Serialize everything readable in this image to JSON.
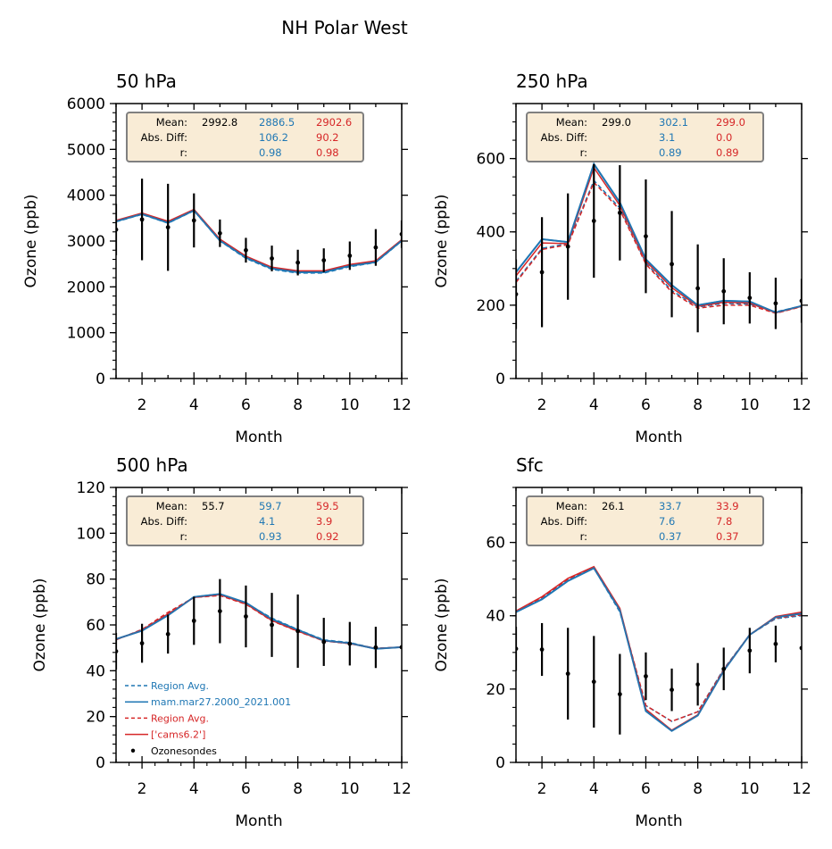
{
  "chart_data": {
    "type": "line",
    "title": "NH Polar West",
    "colors": {
      "observations": "#000000",
      "model1": "#1f77b4",
      "model2": "#d62728",
      "stats_box_bg": "#f9ecd6",
      "stats_box_border": "#808080"
    },
    "legend": {
      "placement": "lower-left of 500 hPa panel",
      "entries": [
        {
          "label": "Region Avg.",
          "color": "#1f77b4",
          "style": "dashed"
        },
        {
          "label": "mam.mar27.2000_2021.001",
          "color": "#1f77b4",
          "style": "solid"
        },
        {
          "label": "Region Avg.",
          "color": "#d62728",
          "style": "dashed"
        },
        {
          "label": "['cams6.2']",
          "color": "#d62728",
          "style": "solid"
        },
        {
          "label": "Ozonesondes",
          "color": "#000000",
          "style": "marker"
        }
      ]
    },
    "x": [
      1,
      2,
      3,
      4,
      5,
      6,
      7,
      8,
      9,
      10,
      11,
      12
    ],
    "panels": [
      {
        "title": "50 hPa",
        "xlabel": "Month",
        "ylabel": "Ozone (ppb)",
        "xlim": [
          1,
          12
        ],
        "ylim": [
          0,
          6000
        ],
        "xticks": [
          "2",
          "4",
          "6",
          "8",
          "10",
          "12"
        ],
        "yticks": [
          "0",
          "1000",
          "2000",
          "3000",
          "4000",
          "5000",
          "6000"
        ],
        "ytick_values": [
          0,
          1000,
          2000,
          3000,
          4000,
          5000,
          6000
        ],
        "minor_y_step": 200,
        "stats": {
          "labels": [
            "Mean:",
            "Abs. Diff:",
            "r:"
          ],
          "obs": [
            "2992.8",
            "",
            ""
          ],
          "model1": [
            "2886.5",
            "106.2",
            "0.98"
          ],
          "model2": [
            "2902.6",
            "90.2",
            "0.98"
          ]
        },
        "obs": {
          "mean": [
            3250,
            3470,
            3300,
            3450,
            3170,
            2800,
            2620,
            2530,
            2580,
            2680,
            2860,
            3150
          ],
          "err": [
            560,
            890,
            950,
            590,
            300,
            270,
            280,
            280,
            260,
            310,
            400,
            300
          ]
        },
        "series": [
          {
            "name": "Region Avg. (mam.mar27.2000_2021.001)",
            "color": "#1f77b4",
            "style": "dashed",
            "values": [
              3420,
              3580,
              3390,
              3660,
              3000,
              2620,
              2380,
              2300,
              2300,
              2440,
              2530,
              3000
            ]
          },
          {
            "name": "mam.mar27.2000_2021.001",
            "color": "#1f77b4",
            "style": "solid",
            "values": [
              3430,
              3590,
              3400,
              3670,
              3010,
              2640,
              2400,
              2320,
              2320,
              2460,
              2540,
              3010
            ]
          },
          {
            "name": "Region Avg. (['cams6.2'])",
            "color": "#d62728",
            "style": "dashed",
            "values": [
              3440,
              3600,
              3420,
              3680,
              3030,
              2660,
              2420,
              2340,
              2340,
              2480,
              2560,
              3020
            ]
          },
          {
            "name": "['cams6.2']",
            "color": "#d62728",
            "style": "solid",
            "values": [
              3450,
              3610,
              3430,
              3690,
              3040,
              2670,
              2430,
              2350,
              2350,
              2490,
              2570,
              3030
            ]
          }
        ]
      },
      {
        "title": "250 hPa",
        "xlabel": "Month",
        "ylabel": "Ozone (ppb)",
        "xlim": [
          1,
          12
        ],
        "ylim": [
          0,
          750
        ],
        "xticks": [
          "2",
          "4",
          "6",
          "8",
          "10",
          "12"
        ],
        "yticks": [
          "0",
          "200",
          "400",
          "600"
        ],
        "ytick_values": [
          0,
          200,
          400,
          600
        ],
        "minor_y_step": 50,
        "stats": {
          "labels": [
            "Mean:",
            "Abs. Diff:",
            "r:"
          ],
          "obs": [
            "299.0",
            "",
            ""
          ],
          "model1": [
            "302.1",
            "3.1",
            "0.89"
          ],
          "model2": [
            "299.0",
            "0.0",
            "0.89"
          ]
        },
        "obs": {
          "mean": [
            230,
            290,
            360,
            430,
            452,
            388,
            312,
            246,
            238,
            220,
            205,
            212
          ],
          "err": [
            95,
            150,
            145,
            155,
            130,
            155,
            145,
            120,
            90,
            70,
            70,
            60
          ]
        },
        "series": [
          {
            "name": "Region Avg. (mam.mar27.2000_2021.001)",
            "color": "#1f77b4",
            "style": "dashed",
            "values": [
              265,
              355,
              368,
              540,
              465,
              315,
              240,
              195,
              205,
              203,
              182,
              198
            ]
          },
          {
            "name": "mam.mar27.2000_2021.001",
            "color": "#1f77b4",
            "style": "solid",
            "values": [
              290,
              380,
              372,
              585,
              480,
              325,
              255,
              200,
              212,
              210,
              180,
              198
            ]
          },
          {
            "name": "Region Avg. (['cams6.2'])",
            "color": "#d62728",
            "style": "dashed",
            "values": [
              262,
              352,
              365,
              535,
              460,
              312,
              236,
              192,
              200,
              200,
              178,
              196
            ]
          },
          {
            "name": "['cams6.2']",
            "color": "#d62728",
            "style": "solid",
            "values": [
              280,
              370,
              368,
              575,
              472,
              320,
              248,
              197,
              208,
              206,
              179,
              197
            ]
          }
        ]
      },
      {
        "title": "500 hPa",
        "xlabel": "Month",
        "ylabel": "Ozone (ppb)",
        "xlim": [
          1,
          12
        ],
        "ylim": [
          0,
          120
        ],
        "xticks": [
          "2",
          "4",
          "6",
          "8",
          "10",
          "12"
        ],
        "yticks": [
          "0",
          "20",
          "40",
          "60",
          "80",
          "100",
          "120"
        ],
        "ytick_values": [
          0,
          20,
          40,
          60,
          80,
          100,
          120
        ],
        "minor_y_step": 4,
        "stats": {
          "labels": [
            "Mean:",
            "Abs. Diff:",
            "r:"
          ],
          "obs": [
            "55.7",
            "",
            ""
          ],
          "model1": [
            "59.7",
            "4.1",
            "0.93"
          ],
          "model2": [
            "59.5",
            "3.9",
            "0.92"
          ]
        },
        "obs": {
          "mean": [
            48.5,
            52,
            56,
            61.8,
            66,
            63.7,
            60,
            57.3,
            52.6,
            51.8,
            50.2,
            50.3
          ],
          "err": [
            8,
            8.5,
            8.5,
            10.5,
            14,
            13.5,
            14,
            16,
            10.5,
            9.5,
            9
          ],
          "note": "last point error bar not visible"
        },
        "series": [
          {
            "name": "Region Avg. (mam.mar27.2000_2021.001)",
            "color": "#1f77b4",
            "style": "dashed",
            "values": [
              53.5,
              58,
              65,
              72,
              73,
              69.5,
              63,
              58,
              53.5,
              52.3,
              49.7,
              50.3
            ]
          },
          {
            "name": "mam.mar27.2000_2021.001",
            "color": "#1f77b4",
            "style": "solid",
            "values": [
              53.8,
              57.5,
              64.2,
              72.2,
              73.5,
              69.7,
              62.5,
              57.8,
              53.2,
              52,
              49.6,
              50.3
            ]
          },
          {
            "name": "Region Avg. (['cams6.2'])",
            "color": "#d62728",
            "style": "dashed",
            "values": [
              53.5,
              58,
              65.5,
              72,
              72.8,
              69,
              61.8,
              57.2,
              53,
              51.8,
              49.7,
              50.3
            ]
          },
          {
            "name": "['cams6.2']",
            "color": "#d62728",
            "style": "solid",
            "values": [
              53.6,
              57.8,
              64.8,
              72,
              73.2,
              69.2,
              62,
              57.3,
              53.1,
              51.9,
              49.7,
              50.3
            ]
          }
        ]
      },
      {
        "title": "Sfc",
        "xlabel": "Month",
        "ylabel": "Ozone (ppb)",
        "xlim": [
          1,
          12
        ],
        "ylim": [
          0,
          75
        ],
        "xticks": [
          "2",
          "4",
          "6",
          "8",
          "10",
          "12"
        ],
        "yticks": [
          "0",
          "20",
          "40",
          "60"
        ],
        "ytick_values": [
          0,
          20,
          40,
          60
        ],
        "minor_y_step": 5,
        "stats": {
          "labels": [
            "Mean:",
            "Abs. Diff:",
            "r:"
          ],
          "obs": [
            "26.1",
            "",
            ""
          ],
          "model1": [
            "33.7",
            "7.6",
            "0.37"
          ],
          "model2": [
            "33.9",
            "7.8",
            "0.37"
          ]
        },
        "obs": {
          "mean": [
            31,
            30.8,
            24.2,
            22,
            18.6,
            23.5,
            19.8,
            21.3,
            25.5,
            30.5,
            32.3,
            31.2
          ],
          "err": [
            6,
            7.2,
            12.5,
            12.5,
            11,
            6.5,
            5.8,
            5.8,
            5.8,
            6.2,
            5
          ],
          "note": "last point error bar not visible"
        },
        "series": [
          {
            "name": "Region Avg. (mam.mar27.2000_2021.001)",
            "color": "#1f77b4",
            "style": "dashed",
            "values": [
              41,
              44.8,
              49.8,
              53,
              41,
              15.5,
              11.2,
              13.8,
              25.5,
              34.8,
              39.2,
              40
            ]
          },
          {
            "name": "mam.mar27.2000_2021.001",
            "color": "#1f77b4",
            "style": "solid",
            "values": [
              41,
              44.5,
              49.5,
              53,
              41.5,
              14,
              8.6,
              12.8,
              25,
              34.8,
              39.6,
              40.6
            ]
          },
          {
            "name": "Region Avg. (['cams6.2'])",
            "color": "#d62728",
            "style": "dashed",
            "values": [
              41.2,
              45,
              50,
              53.2,
              41.5,
              15.5,
              11.2,
              13.8,
              25.3,
              34.8,
              39.4,
              40.2
            ]
          },
          {
            "name": "['cams6.2']",
            "color": "#d62728",
            "style": "solid",
            "values": [
              41.3,
              45.2,
              50.2,
              53.4,
              42,
              14.5,
              8.8,
              13,
              25.2,
              34.8,
              39.8,
              41
            ]
          }
        ]
      }
    ]
  }
}
